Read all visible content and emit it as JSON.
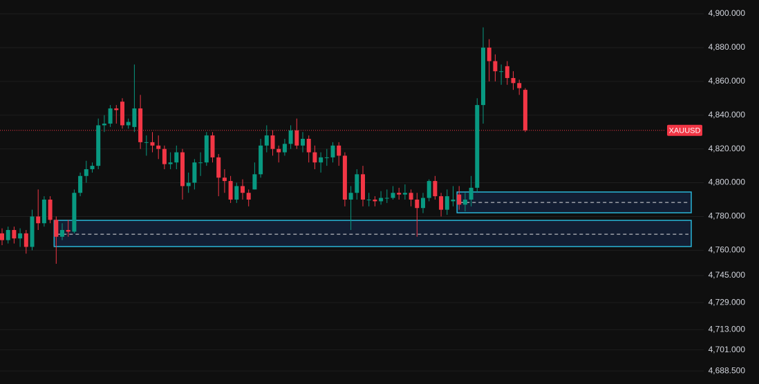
{
  "chart_data": {
    "type": "candlestick",
    "symbol": "XAUUSD",
    "up_color": "#089981",
    "down_color": "#f23645",
    "zone_color": "#29b6d8",
    "ylim": [
      4680.8,
      4908.2
    ],
    "yticks": [
      {
        "value": 4900,
        "label": "4,900.000"
      },
      {
        "value": 4880,
        "label": "4,880.000"
      },
      {
        "value": 4860,
        "label": "4,860.000"
      },
      {
        "value": 4840,
        "label": "4,840.000"
      },
      {
        "value": 4820,
        "label": "4,820.000"
      },
      {
        "value": 4800,
        "label": "4,800.000"
      },
      {
        "value": 4780,
        "label": "4,780.000"
      },
      {
        "value": 4760,
        "label": "4,760.000"
      },
      {
        "value": 4745,
        "label": "4,745.000"
      },
      {
        "value": 4729,
        "label": "4,729.000"
      },
      {
        "value": 4713,
        "label": "4,713.000"
      },
      {
        "value": 4701,
        "label": "4,701.000"
      },
      {
        "value": 4688.5,
        "label": "4,688.500"
      }
    ],
    "grid": true,
    "open": [
      4770,
      4766,
      4772,
      4767,
      4770,
      4762,
      4780,
      4776,
      4790,
      4778,
      4768,
      4772,
      4771,
      4794,
      4804,
      4808,
      4810,
      4834,
      4835,
      4844,
      4848,
      4834,
      4833,
      4844,
      4824,
      4824,
      4822,
      4820,
      4811,
      4812,
      4818,
      4798,
      4800,
      4812,
      4812,
      4828,
      4815,
      4803,
      4801,
      4790,
      4798,
      4794,
      4796,
      4805,
      4822,
      4828,
      4820,
      4818,
      4823,
      4831,
      4822,
      4826,
      4818,
      4812,
      4815,
      4815,
      4822,
      4816,
      4790,
      4794,
      4805,
      4790,
      4790,
      4789,
      4791,
      4791,
      4794,
      4793,
      4794,
      4790,
      4785,
      4791,
      4801,
      4792,
      4784,
      4789,
      4793,
      4787,
      4790,
      4797,
      4846,
      4880,
      4872,
      4866,
      4869,
      4862,
      4859,
      4855
    ],
    "high": [
      4773,
      4774,
      4774,
      4773,
      4772,
      4784,
      4796,
      4792,
      4792,
      4780,
      4776,
      4778,
      4796,
      4806,
      4813,
      4812,
      4838,
      4840,
      4846,
      4846,
      4850,
      4838,
      4870,
      4852,
      4828,
      4830,
      4828,
      4822,
      4818,
      4822,
      4820,
      4806,
      4814,
      4818,
      4830,
      4830,
      4817,
      4808,
      4804,
      4800,
      4802,
      4796,
      4812,
      4826,
      4834,
      4831,
      4822,
      4826,
      4834,
      4838,
      4830,
      4828,
      4822,
      4818,
      4820,
      4824,
      4824,
      4818,
      4798,
      4808,
      4810,
      4794,
      4792,
      4795,
      4796,
      4798,
      4797,
      4799,
      4796,
      4794,
      4794,
      4802,
      4804,
      4794,
      4796,
      4798,
      4798,
      4794,
      4804,
      4850,
      4892,
      4885,
      4876,
      4870,
      4872,
      4866,
      4861,
      4856
    ],
    "low": [
      4763,
      4764,
      4764,
      4762,
      4758,
      4760,
      4772,
      4774,
      4776,
      4752,
      4766,
      4768,
      4770,
      4792,
      4800,
      4806,
      4808,
      4830,
      4833,
      4835,
      4832,
      4832,
      4830,
      4820,
      4816,
      4818,
      4814,
      4808,
      4808,
      4808,
      4790,
      4794,
      4796,
      4804,
      4810,
      4812,
      4792,
      4794,
      4788,
      4788,
      4790,
      4786,
      4796,
      4803,
      4818,
      4816,
      4812,
      4816,
      4820,
      4820,
      4818,
      4812,
      4808,
      4806,
      4810,
      4812,
      4810,
      4786,
      4772,
      4790,
      4786,
      4786,
      4786,
      4787,
      4788,
      4790,
      4790,
      4790,
      4786,
      4768,
      4782,
      4789,
      4790,
      4780,
      4781,
      4786,
      4784,
      4783,
      4786,
      4794,
      4835,
      4860,
      4860,
      4858,
      4858,
      4855,
      4852,
      4830
    ],
    "close": [
      4766,
      4772,
      4767,
      4770,
      4762,
      4780,
      4776,
      4790,
      4778,
      4768,
      4772,
      4771,
      4794,
      4804,
      4808,
      4810,
      4834,
      4835,
      4844,
      4843,
      4834,
      4836,
      4844,
      4824,
      4824,
      4822,
      4820,
      4811,
      4812,
      4818,
      4798,
      4800,
      4812,
      4812,
      4828,
      4815,
      4803,
      4801,
      4790,
      4798,
      4794,
      4790,
      4805,
      4822,
      4828,
      4820,
      4818,
      4823,
      4831,
      4822,
      4826,
      4818,
      4812,
      4815,
      4815,
      4822,
      4816,
      4790,
      4794,
      4805,
      4790,
      4790,
      4789,
      4791,
      4791,
      4794,
      4793,
      4794,
      4790,
      4785,
      4791,
      4801,
      4792,
      4784,
      4792,
      4790,
      4787,
      4790,
      4797,
      4846,
      4880,
      4872,
      4866,
      4866,
      4862,
      4859,
      4856,
      4831
    ],
    "zones": [
      {
        "from": 9,
        "high": 4777.7,
        "low": 4762.2,
        "mid": 4769.5
      },
      {
        "from": 76,
        "high": 4794.5,
        "low": 4782.2,
        "mid": 4788.3
      }
    ]
  }
}
